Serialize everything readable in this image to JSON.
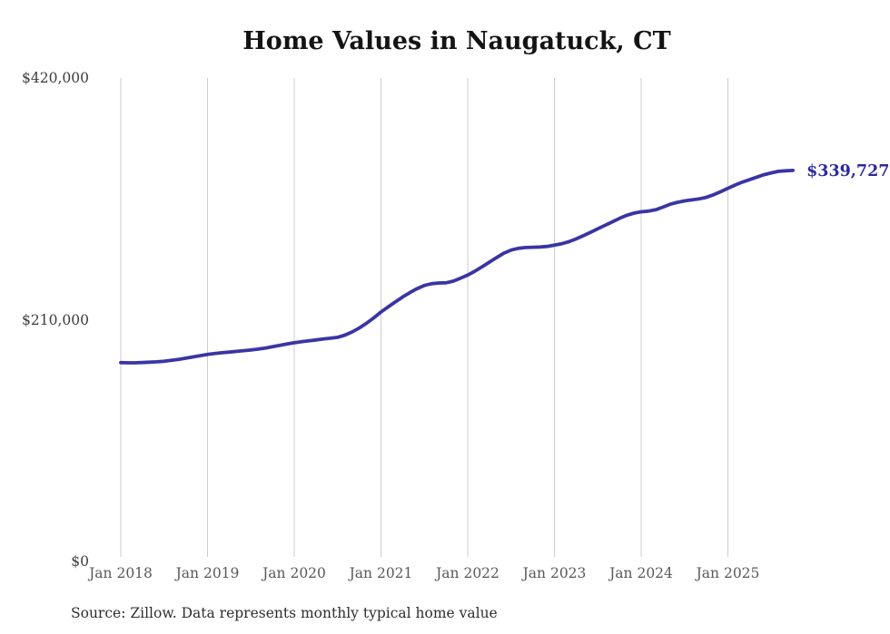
{
  "page": {
    "background_color": "#ffffff"
  },
  "chart_data": {
    "type": "line",
    "title": "Home Values in Naugatuck, CT",
    "source_note": "Source: Zillow. Data represents monthly typical home value",
    "series": [
      {
        "name": "Monthly typical home value",
        "start_month": "Jan 2018",
        "end_month": "Oct 2025",
        "frequency": "monthly",
        "values": [
          172700,
          172600,
          172600,
          172800,
          173100,
          173400,
          173900,
          174700,
          175600,
          176600,
          177700,
          178800,
          179800,
          180600,
          181300,
          181900,
          182500,
          183100,
          183700,
          184500,
          185400,
          186500,
          187700,
          188900,
          190000,
          190900,
          191700,
          192400,
          193200,
          193900,
          194700,
          196600,
          199400,
          202800,
          206900,
          211600,
          216700,
          221200,
          225500,
          229800,
          233600,
          237000,
          239800,
          241300,
          241900,
          242100,
          243500,
          246000,
          248800,
          252200,
          256000,
          260000,
          264000,
          267800,
          270500,
          272000,
          272700,
          273000,
          273200,
          273700,
          274800,
          276000,
          277800,
          280200,
          283000,
          286000,
          289000,
          292000,
          295000,
          298000,
          300700,
          302600,
          303800,
          304300,
          305500,
          307800,
          310300,
          312000,
          313200,
          314100,
          315000,
          316300,
          318500,
          321200,
          324200,
          327000,
          329500,
          331700,
          333900,
          336000,
          337600,
          338900,
          339400,
          339727
        ]
      }
    ],
    "latest_value": 339727,
    "end_label": "$339,727",
    "x_ticks": [
      "Jan 2018",
      "Jan 2019",
      "Jan 2020",
      "Jan 2021",
      "Jan 2022",
      "Jan 2023",
      "Jan 2024",
      "Jan 2025"
    ],
    "y_ticks": [
      "$420,000",
      "$210,000",
      "$0"
    ],
    "ylim": [
      0,
      420000
    ],
    "grid": "vertical-only",
    "legend": "none",
    "colors": {
      "line": "#3a35a3",
      "end_label": "#2d2a9b",
      "grid": "#cccccc"
    }
  }
}
